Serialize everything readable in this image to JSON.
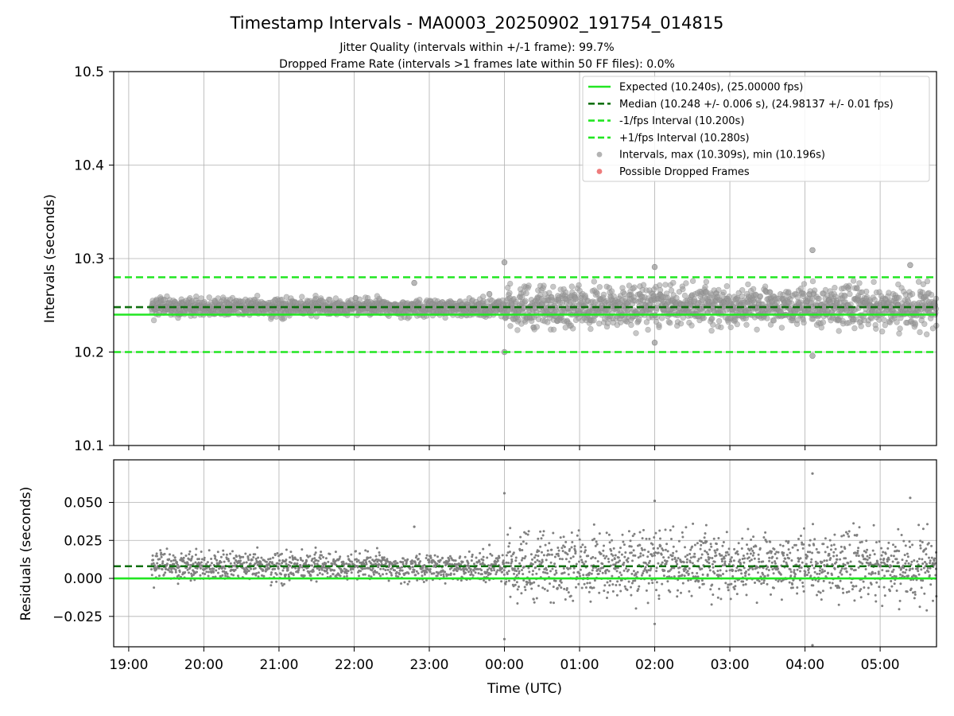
{
  "chart_data": {
    "type": "scatter",
    "title": "Timestamp Intervals - MA0003_20250902_191754_014815",
    "subtitle_lines": [
      "Jitter Quality (intervals within +/-1 frame): 99.7%",
      "Dropped Frame Rate (intervals >1 frames late within 50 FF files): 0.0%"
    ],
    "xlabel": "Time (UTC)",
    "x_tick_labels": [
      "19:00",
      "20:00",
      "21:00",
      "22:00",
      "23:00",
      "00:00",
      "01:00",
      "02:00",
      "03:00",
      "04:00",
      "05:00"
    ],
    "x_range_hours": [
      -0.2,
      10.75
    ],
    "data_start_hour": 0.3,
    "expected_interval": 10.24,
    "median_interval": 10.248,
    "lower_interval": 10.2,
    "upper_interval": 10.28,
    "top": {
      "ylabel": "Intervals (seconds)",
      "ylim": [
        10.1,
        10.5
      ],
      "yticks": [
        "10.1",
        "10.2",
        "10.3",
        "10.4",
        "10.5"
      ],
      "legend": [
        {
          "label": "Expected (10.240s), (25.00000 fps)",
          "kind": "solid",
          "color": "#22e622"
        },
        {
          "label": "Median (10.248 +/- 0.006 s), (24.98137 +/- 0.01 fps)",
          "kind": "dashed",
          "color": "#107010"
        },
        {
          "label": "-1/fps Interval (10.200s)",
          "kind": "dashed",
          "color": "#22e622"
        },
        {
          "label": "+1/fps Interval (10.280s)",
          "kind": "dashed",
          "color": "#22e622"
        },
        {
          "label": "Intervals, max (10.309s), min (10.196s)",
          "kind": "dot",
          "color": "#999999"
        },
        {
          "label": "Possible Dropped Frames",
          "kind": "dot",
          "color": "#e85050"
        }
      ],
      "notable_points": [
        {
          "t": 5.0,
          "v": 10.296
        },
        {
          "t": 7.0,
          "v": 10.291
        },
        {
          "t": 9.1,
          "v": 10.309
        },
        {
          "t": 9.1,
          "v": 10.196
        },
        {
          "t": 5.0,
          "v": 10.2
        },
        {
          "t": 7.0,
          "v": 10.21
        },
        {
          "t": 4.8,
          "v": 10.262
        },
        {
          "t": 3.8,
          "v": 10.274
        },
        {
          "t": 10.4,
          "v": 10.293
        }
      ]
    },
    "bottom": {
      "ylabel": "Residuals (seconds)",
      "ylim": [
        -0.045,
        0.078
      ],
      "yticks": [
        "0.050",
        "0.025",
        "0.000",
        "−0.025"
      ],
      "ytick_values": [
        0.05,
        0.025,
        0.0,
        -0.025
      ],
      "median_residual": 0.008
    },
    "colors": {
      "expected": "#22e622",
      "median": "#107010",
      "points": "#808080",
      "grid": "#b0b0b0"
    }
  }
}
